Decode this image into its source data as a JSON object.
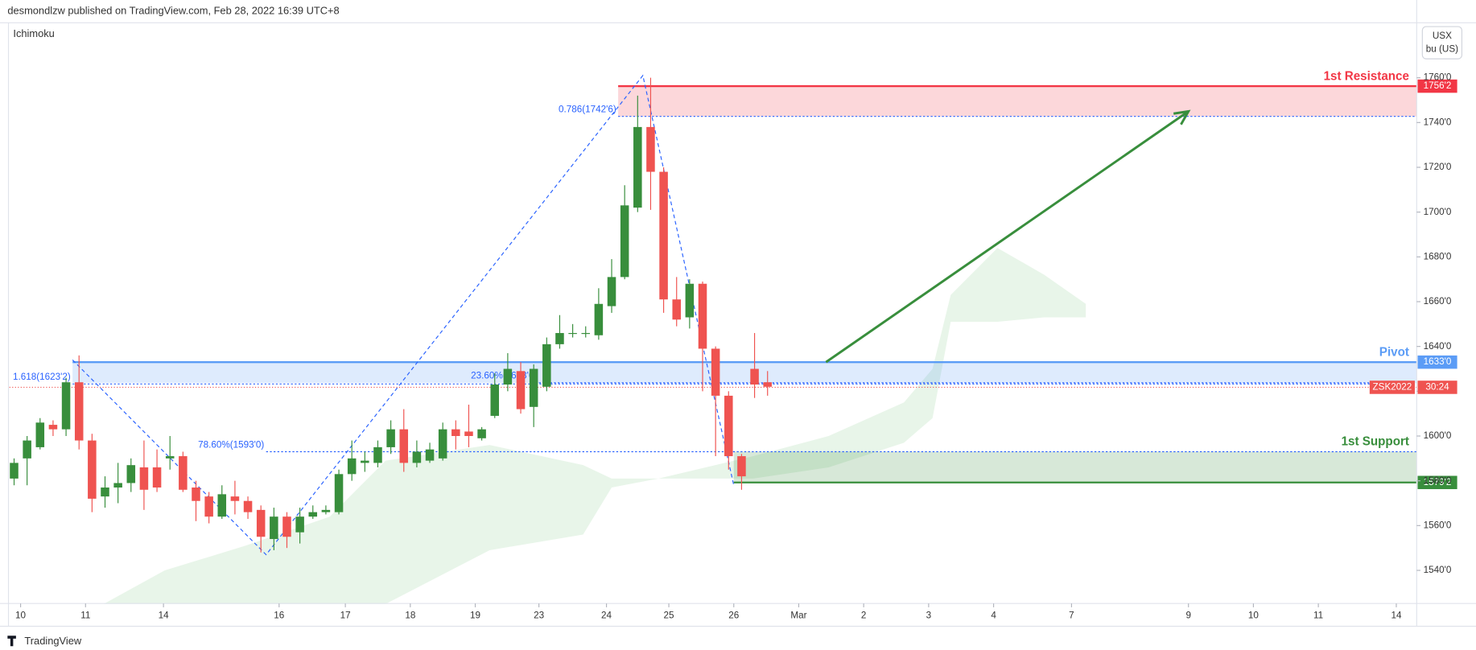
{
  "header": {
    "publisher": "desmondlzw published on TradingView.com, Feb 28, 2022 16:39 UTC+8",
    "indicator": "Ichimoku",
    "currency": "USX",
    "unit": "bu (US)",
    "brand": "TradingView"
  },
  "chart_data": {
    "type": "candlestick",
    "open": [
      1581,
      1590,
      1595,
      1605,
      1603,
      1624,
      1598,
      1573,
      1577,
      1579,
      1586,
      1586,
      1590,
      1591,
      1577,
      1573,
      1564,
      1573,
      1571,
      1567,
      1554,
      1564,
      1557,
      1564,
      1566,
      1566,
      1583,
      1588,
      1588,
      1595,
      1603,
      1588,
      1589,
      1590,
      1603,
      1602,
      1599,
      1609,
      1623,
      1629,
      1613,
      1622,
      1641,
      1646,
      1646,
      1645,
      1658,
      1671,
      1702,
      1738,
      1718,
      1661,
      1653,
      1668,
      1639,
      1618,
      1591,
      1630,
      1624
    ],
    "high": [
      1590,
      1600,
      1608,
      1607,
      1626,
      1636,
      1601,
      1582,
      1588,
      1590,
      1598,
      1594,
      1600,
      1593,
      1580,
      1575,
      1578,
      1580,
      1573,
      1569,
      1568,
      1566,
      1568,
      1569,
      1569,
      1585,
      1598,
      1593,
      1598,
      1607,
      1612,
      1598,
      1597,
      1606,
      1607,
      1614,
      1604,
      1628,
      1637,
      1633,
      1632,
      1644,
      1654,
      1650,
      1649,
      1666,
      1679,
      1712,
      1752,
      1760,
      1720,
      1671,
      1670,
      1669,
      1640,
      1620,
      1592,
      1646,
      1629
    ],
    "low": [
      1578,
      1578,
      1594,
      1600,
      1600,
      1594,
      1566,
      1568,
      1570,
      1575,
      1567,
      1575,
      1585,
      1575,
      1562,
      1561,
      1563,
      1565,
      1563,
      1548,
      1549,
      1550,
      1552,
      1563,
      1565,
      1565,
      1580,
      1584,
      1586,
      1592,
      1584,
      1586,
      1588,
      1589,
      1594,
      1595,
      1598,
      1608,
      1620,
      1610,
      1604,
      1620,
      1639,
      1644,
      1644,
      1643,
      1655,
      1670,
      1700,
      1701,
      1655,
      1649,
      1648,
      1620,
      1591,
      1585,
      1576,
      1617,
      1618
    ],
    "close": [
      1588,
      1598,
      1606,
      1603,
      1624,
      1598,
      1572,
      1577,
      1579,
      1587,
      1576,
      1577,
      1591,
      1576,
      1571,
      1564,
      1574,
      1571,
      1566,
      1555,
      1564,
      1555,
      1564,
      1566,
      1567,
      1583,
      1590,
      1589,
      1595,
      1603,
      1588,
      1593,
      1594,
      1603,
      1600,
      1600,
      1603,
      1623,
      1630,
      1612,
      1630,
      1641,
      1646,
      1646,
      1646,
      1659,
      1671,
      1703,
      1738,
      1718,
      1661,
      1652,
      1668,
      1639,
      1618,
      1591,
      1582,
      1623,
      1622
    ],
    "up_color": "#388e3c",
    "down_color": "#ef5350",
    "xlim": [
      -0.36,
      107.97
    ],
    "ylim": [
      1525.2,
      1785.4
    ],
    "xticks": [
      {
        "value": 0.5,
        "label": "10"
      },
      {
        "value": 5.5,
        "label": "11"
      },
      {
        "value": 11.5,
        "label": "14"
      },
      {
        "value": 20.4,
        "label": "16"
      },
      {
        "value": 25.5,
        "label": "17"
      },
      {
        "value": 30.5,
        "label": "18"
      },
      {
        "value": 35.5,
        "label": "19"
      },
      {
        "value": 40.4,
        "label": "23"
      },
      {
        "value": 45.6,
        "label": "24"
      },
      {
        "value": 50.4,
        "label": "25"
      },
      {
        "value": 55.4,
        "label": "26"
      },
      {
        "value": 60.4,
        "label": "Mar"
      },
      {
        "value": 65.4,
        "label": "2"
      },
      {
        "value": 70.4,
        "label": "3"
      },
      {
        "value": 75.4,
        "label": "4"
      },
      {
        "value": 81.4,
        "label": "7"
      },
      {
        "value": 90.4,
        "label": "9"
      },
      {
        "value": 95.4,
        "label": "10"
      },
      {
        "value": 100.4,
        "label": "11"
      },
      {
        "value": 106.4,
        "label": "14"
      }
    ],
    "yticks": [
      {
        "value": 1540,
        "label": "1540'0"
      },
      {
        "value": 1560,
        "label": "1560'0"
      },
      {
        "value": 1580,
        "label": "1580'0"
      },
      {
        "value": 1600,
        "label": "1600'0"
      },
      {
        "value": 1620,
        "label": "1620'0"
      },
      {
        "value": 1640,
        "label": "1640'0"
      },
      {
        "value": 1660,
        "label": "1660'0"
      },
      {
        "value": 1680,
        "label": "1680'0"
      },
      {
        "value": 1700,
        "label": "1700'0"
      },
      {
        "value": 1720,
        "label": "1720'0"
      },
      {
        "value": 1740,
        "label": "1740'0"
      },
      {
        "value": 1760,
        "label": "1760'0"
      }
    ],
    "cloud": {
      "x": [
        6.9,
        11.6,
        17.8,
        24.3,
        28.6,
        36.6,
        43.8,
        46.0,
        49.6,
        56.9,
        62.7,
        68.5,
        70.7,
        72.1,
        75.7,
        79.3,
        82.5
      ],
      "upper": [
        1525,
        1540,
        1551,
        1564,
        1589,
        1596,
        1587,
        1581,
        1581,
        1591,
        1600,
        1615,
        1630,
        1663,
        1684,
        1672,
        1659
      ],
      "lower": [
        1525,
        1525,
        1525,
        1525,
        1525,
        1549,
        1556,
        1577,
        1581,
        1581,
        1586,
        1597,
        1608,
        1651,
        1651,
        1653,
        1653
      ],
      "color": "#e8f5e9"
    },
    "zones": [
      {
        "name": "1st Resistance",
        "top": {
          "value": 1756.25,
          "label": "1756'2"
        },
        "bottom": 1742.75,
        "start": 46.5,
        "color": "#f23645"
      },
      {
        "name": "Pivot",
        "top": {
          "value": 1633,
          "label": "1633'0"
        },
        "bottom": 1623.75,
        "start": 4.5,
        "color": "#5b9cf6"
      },
      {
        "name": "1st Support",
        "top": 1593,
        "bottom": {
          "value": 1579.25,
          "label": "1579'2"
        },
        "start": 55.4,
        "color": "#388e3c"
      }
    ],
    "levels": [
      {
        "value": 1742.75,
        "label": "0.786(1742'6)",
        "start": 46.5
      },
      {
        "value": 1623.25,
        "label": "1.618(1623'2)",
        "start": 4.5
      },
      {
        "value": 1623.75,
        "label": "23.60%(1623'6)",
        "start": 40.4
      },
      {
        "value": 1593,
        "label": "78.60%(1593'0)",
        "start": 19.4
      }
    ],
    "last": {
      "value": 1621.75,
      "symbol": "ZSK2022",
      "countdown": "30:24",
      "color": "#ef5350"
    },
    "arrow": {
      "from": [
        62.5,
        1633
      ],
      "to": [
        90.4,
        1745
      ],
      "color": "#388e3c"
    },
    "zigzag": {
      "x": [
        4.5,
        19.4,
        48.4,
        55.4
      ],
      "y": [
        1634,
        1547,
        1761,
        1578
      ],
      "color": "#2962ff"
    }
  }
}
